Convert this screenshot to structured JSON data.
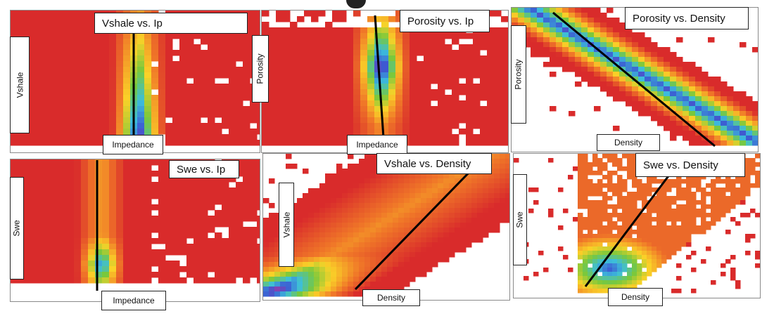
{
  "colors": {
    "background": "#ffffff",
    "base": "#d92b2b",
    "trend_line": "#000000"
  },
  "panels": [
    {
      "id": "p1",
      "title": "Vshale vs. Ip",
      "xlabel": "Impedance",
      "ylabel": "Vshale",
      "chart_data": {
        "type": "heatmap",
        "title": "Vshale vs. Ip",
        "xlabel": "Impedance",
        "ylabel": "Vshale",
        "pattern": "vertical band centered in impedance with density increasing toward low end",
        "grid": false
      }
    },
    {
      "id": "p2",
      "title": "Porosity vs. Ip",
      "xlabel": "Impedance",
      "ylabel": "Porosity",
      "chart_data": {
        "type": "heatmap",
        "title": "Porosity vs. Ip",
        "xlabel": "Impedance",
        "ylabel": "Porosity",
        "pattern": "vertical band, peak density at upper-middle",
        "grid": false
      }
    },
    {
      "id": "p3",
      "title": "Porosity vs. Density",
      "xlabel": "Density",
      "ylabel": "Porosity",
      "chart_data": {
        "type": "heatmap",
        "title": "Porosity vs. Density",
        "xlabel": "Density",
        "ylabel": "Porosity",
        "pattern": "negative linear trend",
        "grid": false
      }
    },
    {
      "id": "p4",
      "title": "Swe vs. Ip",
      "xlabel": "Impedance",
      "ylabel": "Swe",
      "chart_data": {
        "type": "heatmap",
        "title": "Swe vs. Ip",
        "xlabel": "Impedance",
        "ylabel": "Swe",
        "pattern": "vertical band, peak density near bottom",
        "grid": false
      }
    },
    {
      "id": "p5",
      "title": "Vshale vs. Density",
      "xlabel": "Density",
      "ylabel": "Vshale",
      "chart_data": {
        "type": "heatmap",
        "title": "Vshale vs. Density",
        "xlabel": "Density",
        "ylabel": "Vshale",
        "pattern": "positive linear trend",
        "grid": false
      }
    },
    {
      "id": "p6",
      "title": "Swe vs. Density",
      "xlabel": "Density",
      "ylabel": "Swe",
      "chart_data": {
        "type": "heatmap",
        "title": "Swe vs. Density",
        "xlabel": "Density",
        "ylabel": "Swe",
        "pattern": "positive trend, fan-shaped",
        "grid": false
      }
    }
  ]
}
